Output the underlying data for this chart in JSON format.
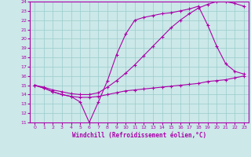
{
  "xlabel": "Windchill (Refroidissement éolien,°C)",
  "bg_color": "#cce8e8",
  "grid_color": "#99cccc",
  "line_color": "#aa00aa",
  "xlim": [
    -0.5,
    23.5
  ],
  "ylim": [
    11,
    24
  ],
  "xticks": [
    0,
    1,
    2,
    3,
    4,
    5,
    6,
    7,
    8,
    9,
    10,
    11,
    12,
    13,
    14,
    15,
    16,
    17,
    18,
    19,
    20,
    21,
    22,
    23
  ],
  "yticks": [
    11,
    12,
    13,
    14,
    15,
    16,
    17,
    18,
    19,
    20,
    21,
    22,
    23,
    24
  ],
  "line1_x": [
    0,
    1,
    2,
    3,
    4,
    5,
    6,
    7,
    8,
    9,
    10,
    11,
    12,
    13,
    14,
    15,
    16,
    17,
    18,
    19,
    20,
    21,
    22,
    23
  ],
  "line1_y": [
    15.0,
    14.8,
    14.5,
    14.3,
    14.1,
    14.0,
    14.0,
    14.2,
    14.8,
    15.5,
    16.3,
    17.2,
    18.2,
    19.2,
    20.2,
    21.2,
    22.0,
    22.7,
    23.3,
    23.7,
    24.0,
    24.0,
    23.8,
    23.5
  ],
  "line2_x": [
    0,
    1,
    2,
    3,
    4,
    5,
    6,
    7,
    8,
    9,
    10,
    11,
    12,
    13,
    14,
    15,
    16,
    17,
    18,
    19,
    20,
    21,
    22,
    23
  ],
  "line2_y": [
    15.0,
    14.7,
    14.3,
    14.0,
    13.8,
    13.2,
    11.0,
    13.2,
    15.5,
    18.3,
    20.5,
    22.0,
    22.3,
    22.5,
    22.7,
    22.8,
    23.0,
    23.2,
    23.5,
    21.5,
    19.2,
    17.3,
    16.5,
    16.2
  ],
  "line3_x": [
    0,
    1,
    2,
    3,
    4,
    5,
    6,
    7,
    8,
    9,
    10,
    11,
    12,
    13,
    14,
    15,
    16,
    17,
    18,
    19,
    20,
    21,
    22,
    23
  ],
  "line3_y": [
    15.0,
    14.7,
    14.3,
    14.0,
    13.8,
    13.7,
    13.7,
    13.8,
    14.0,
    14.2,
    14.4,
    14.5,
    14.6,
    14.7,
    14.8,
    14.9,
    15.0,
    15.1,
    15.2,
    15.4,
    15.5,
    15.6,
    15.8,
    16.0
  ]
}
